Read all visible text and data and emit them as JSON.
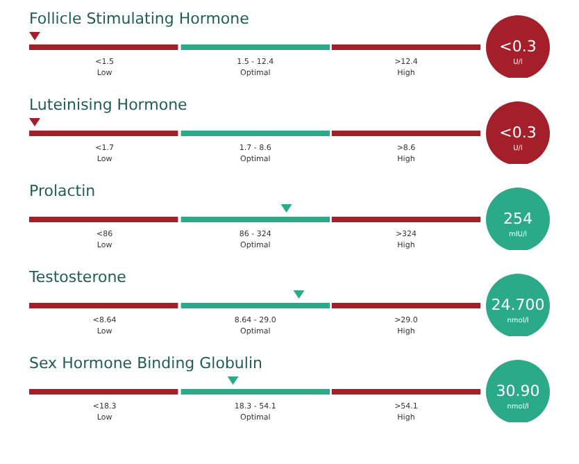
{
  "chart_data": [
    {
      "type": "other",
      "title": "Follicle Stimulating Hormone",
      "bands": [
        {
          "axis": "x",
          "label": "<1.5",
          "color": "#a51f2a"
        },
        {
          "axis": "x",
          "label": "1.5 - 12.4",
          "color": "#2baa8a"
        },
        {
          "axis": "x",
          "label": ">12.4",
          "color": "#a51f2a"
        }
      ],
      "values": [
        0.3
      ],
      "value_labels": [
        "<0.3"
      ],
      "annotations": [
        "Low",
        "Optimal",
        "High",
        "U/l"
      ]
    },
    {
      "type": "other",
      "title": "Luteinising Hormone",
      "bands": [
        {
          "axis": "x",
          "label": "<1.7",
          "color": "#a51f2a"
        },
        {
          "axis": "x",
          "label": "1.7 - 8.6",
          "color": "#2baa8a"
        },
        {
          "axis": "x",
          "label": ">8.6",
          "color": "#a51f2a"
        }
      ],
      "values": [
        0.3
      ],
      "value_labels": [
        "<0.3"
      ],
      "annotations": [
        "Low",
        "Optimal",
        "High",
        "U/l"
      ]
    },
    {
      "type": "other",
      "title": "Prolactin",
      "bands": [
        {
          "axis": "x",
          "label": "<86",
          "color": "#a51f2a"
        },
        {
          "axis": "x",
          "label": "86 - 324",
          "color": "#2baa8a"
        },
        {
          "axis": "x",
          "label": ">324",
          "color": "#a51f2a"
        }
      ],
      "values": [
        254
      ],
      "value_labels": [
        "254"
      ],
      "annotations": [
        "Low",
        "Optimal",
        "High",
        "mIU/l"
      ]
    },
    {
      "type": "other",
      "title": "Testosterone",
      "bands": [
        {
          "axis": "x",
          "label": "<8.64",
          "color": "#a51f2a"
        },
        {
          "axis": "x",
          "label": "8.64 - 29.0",
          "color": "#2baa8a"
        },
        {
          "axis": "x",
          "label": ">29.0",
          "color": "#a51f2a"
        }
      ],
      "values": [
        24.7
      ],
      "value_labels": [
        "24.700"
      ],
      "annotations": [
        "Low",
        "Optimal",
        "High",
        "nmol/l"
      ]
    },
    {
      "type": "other",
      "title": "Sex Hormone Binding Globulin",
      "bands": [
        {
          "axis": "x",
          "label": "<18.3",
          "color": "#a51f2a"
        },
        {
          "axis": "x",
          "label": "18.3 - 54.1",
          "color": "#2baa8a"
        },
        {
          "axis": "x",
          "label": ">54.1",
          "color": "#a51f2a"
        }
      ],
      "values": [
        30.9
      ],
      "value_labels": [
        "30.90"
      ],
      "annotations": [
        "Low",
        "Optimal",
        "High",
        "nmol/l"
      ]
    }
  ]
}
